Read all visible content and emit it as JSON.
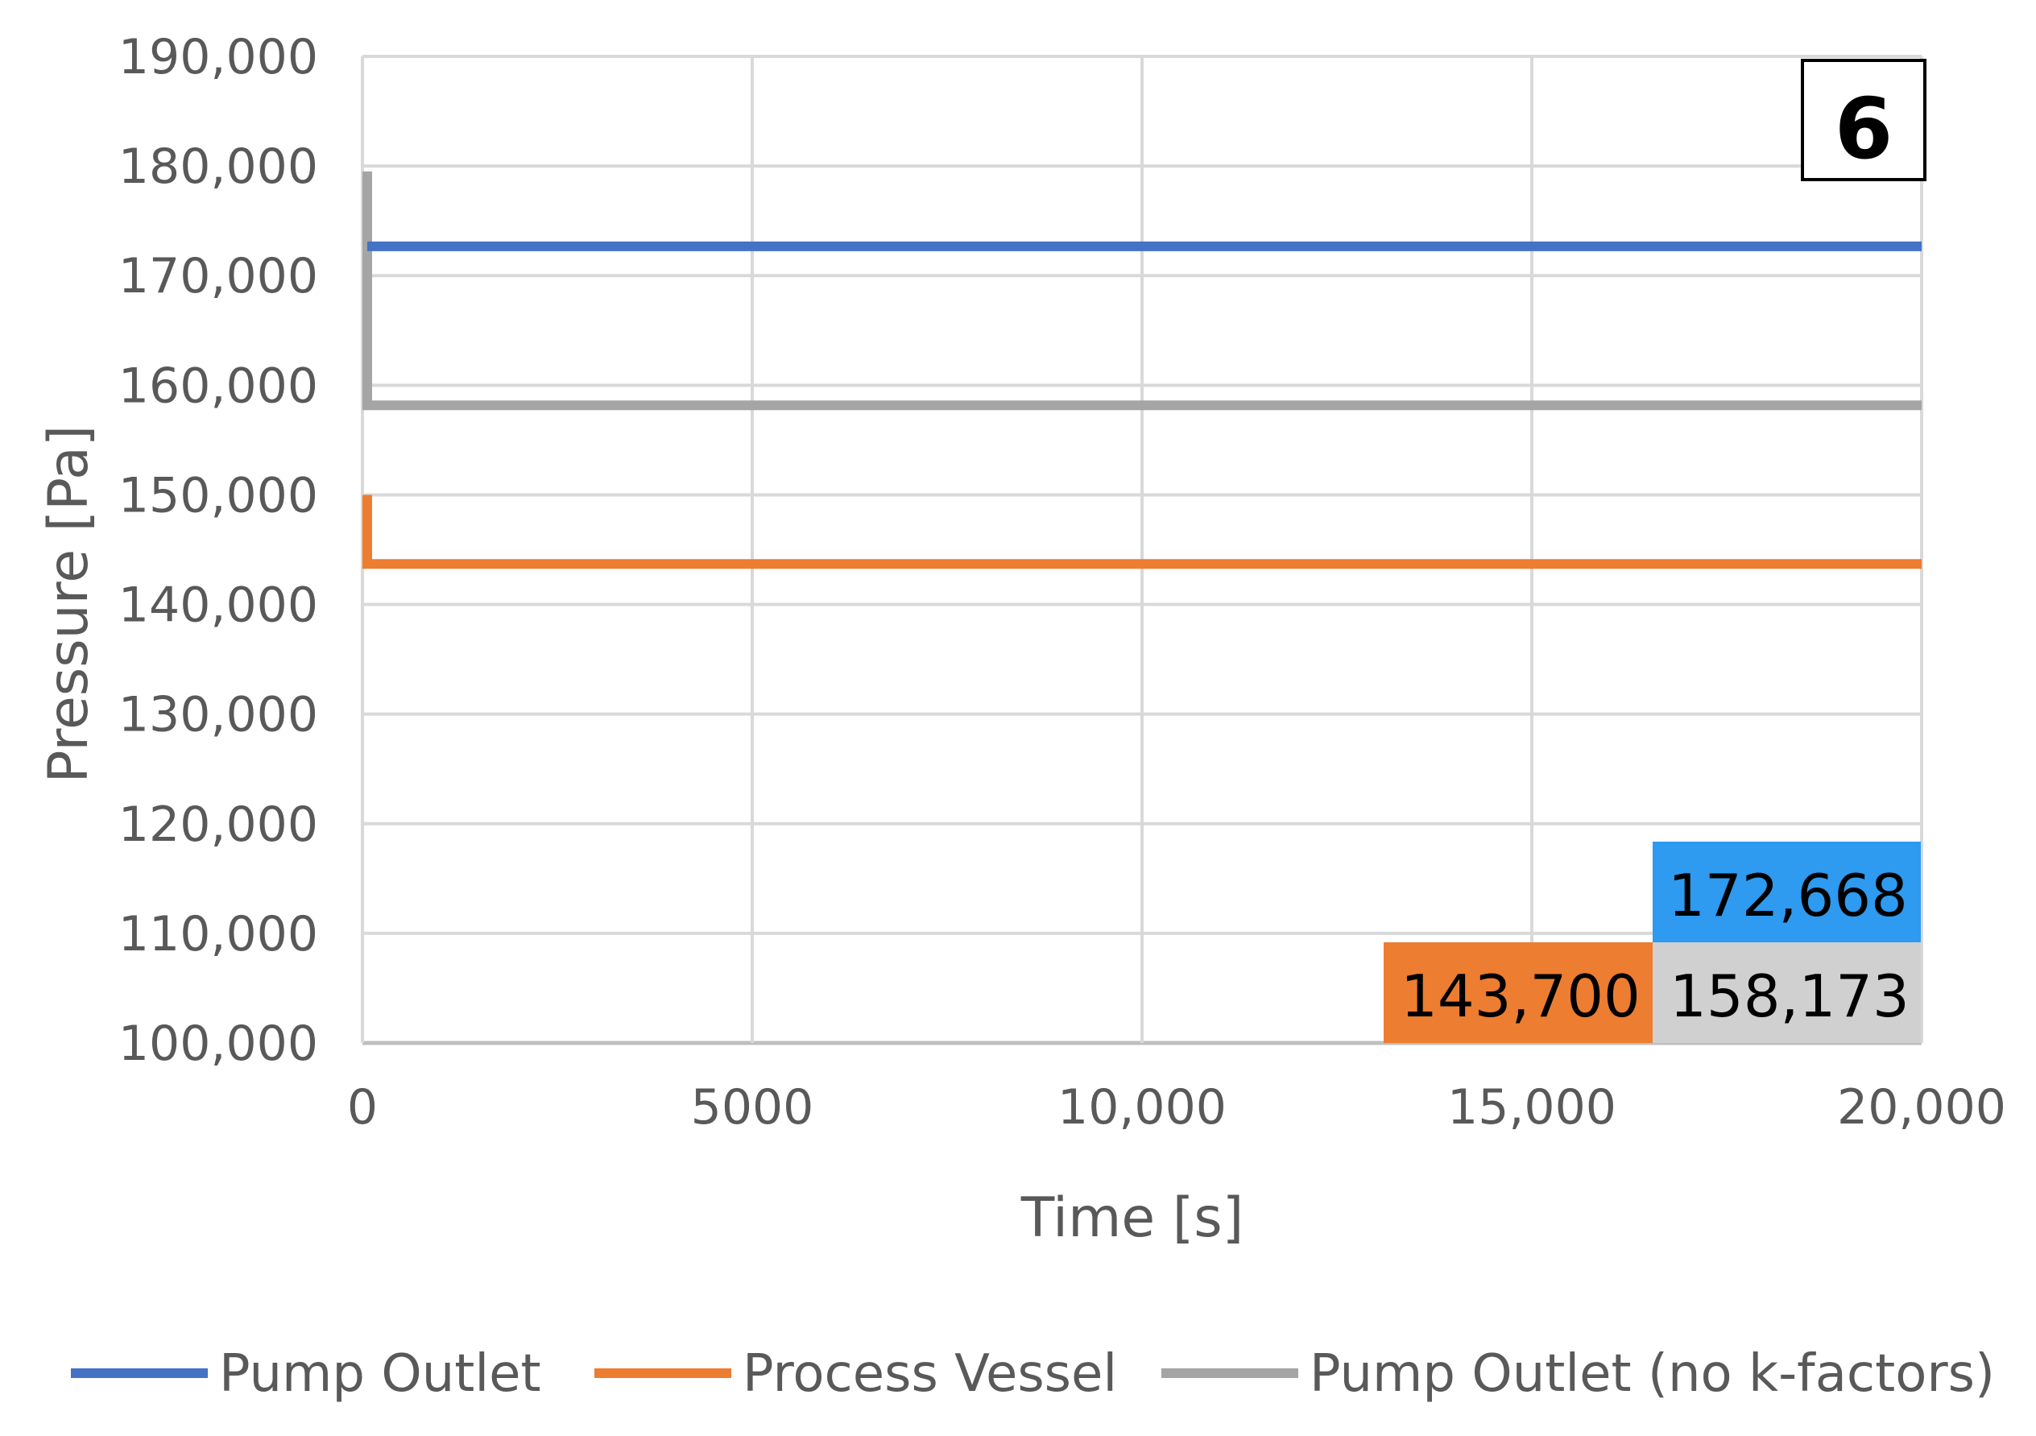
{
  "chart_data": {
    "type": "line",
    "xlabel": "Time [s]",
    "ylabel": "Pressure [Pa]",
    "xlim": [
      0,
      20000
    ],
    "ylim": [
      100000,
      190000
    ],
    "x_ticks": [
      0,
      5000,
      10000,
      15000,
      20000
    ],
    "x_tick_labels": [
      "0",
      "5000",
      "10,000",
      "15,000",
      "20,000"
    ],
    "y_ticks": [
      100000,
      110000,
      120000,
      130000,
      140000,
      150000,
      160000,
      170000,
      180000,
      190000
    ],
    "y_tick_labels": [
      "100,000",
      "110,000",
      "120,000",
      "130,000",
      "140,000",
      "150,000",
      "160,000",
      "170,000",
      "180,000",
      "190,000"
    ],
    "grid": true,
    "legend_position": "bottom",
    "panel_label": "6",
    "series": [
      {
        "name": "Pump Outlet",
        "color": "#4472C4",
        "x": [
          0,
          20000
        ],
        "y": [
          172668,
          172668
        ]
      },
      {
        "name": "Process Vessel",
        "color": "#ED7D31",
        "x": [
          0,
          0,
          20000
        ],
        "y": [
          150000,
          143700,
          143700
        ]
      },
      {
        "name": "Pump Outlet (no k-factors)",
        "color": "#A5A5A5",
        "x": [
          0,
          0,
          20000
        ],
        "y": [
          179500,
          158173,
          158173
        ]
      }
    ],
    "value_boxes": [
      {
        "label": "172,668",
        "color": "#2E9AF0"
      },
      {
        "label": "143,700",
        "color": "#ED7D31"
      },
      {
        "label": "158,173",
        "color": "#D0D0D0"
      }
    ]
  }
}
